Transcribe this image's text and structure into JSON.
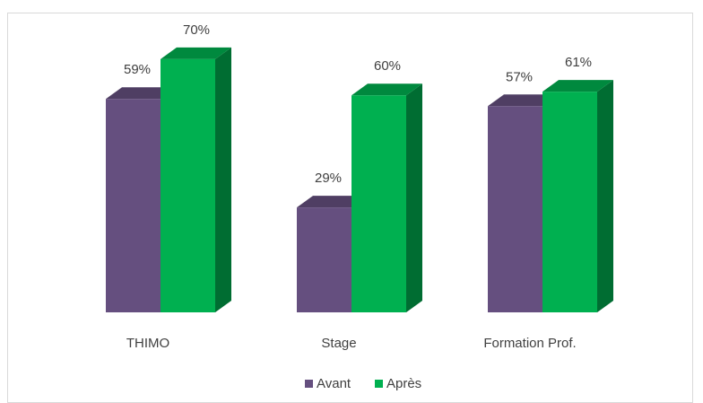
{
  "chart_data": {
    "type": "bar3d",
    "categories": [
      "THIMO",
      "Stage",
      "Formation Prof."
    ],
    "series": [
      {
        "name": "Avant",
        "color": "#654f7f",
        "values": [
          59,
          29,
          57
        ],
        "value_labels": [
          "59%",
          "29%",
          "57%"
        ]
      },
      {
        "name": "Après",
        "color": "#00b050",
        "values": [
          70,
          60,
          61
        ],
        "value_labels": [
          "70%",
          "60%",
          "61%"
        ]
      }
    ],
    "legend": "bottom"
  }
}
